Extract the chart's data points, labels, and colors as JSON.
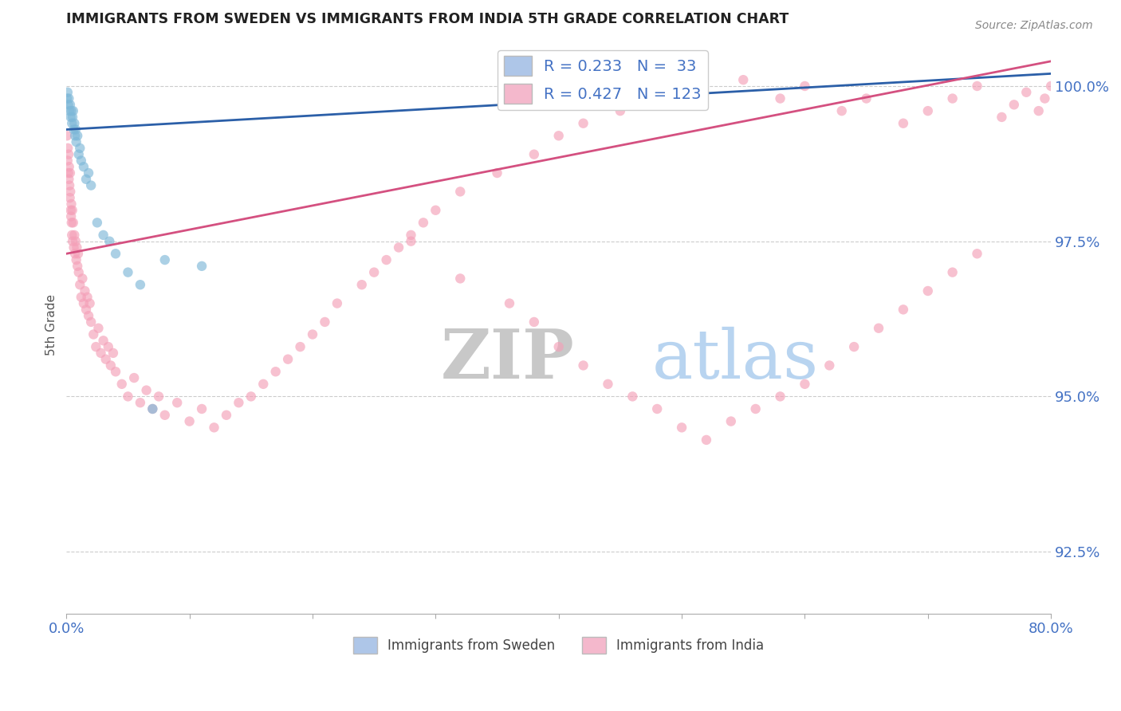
{
  "title": "IMMIGRANTS FROM SWEDEN VS IMMIGRANTS FROM INDIA 5TH GRADE CORRELATION CHART",
  "source": "Source: ZipAtlas.com",
  "ylabel": "5th Grade",
  "ylabel_right_ticks": [
    92.5,
    95.0,
    97.5,
    100.0
  ],
  "xlim": [
    0.0,
    80.0
  ],
  "ylim": [
    91.5,
    100.8
  ],
  "sweden_color": "#7eb8d8",
  "india_color": "#f4a0b8",
  "sweden_R": 0.233,
  "sweden_N": 33,
  "india_R": 0.427,
  "india_N": 123,
  "watermark_zip_color": "#c8c8c8",
  "watermark_atlas_color": "#b8d4f0",
  "background_color": "#ffffff",
  "grid_color": "#cccccc",
  "axis_label_color": "#4472c4",
  "legend_box_color_sweden": "#aec6e8",
  "legend_box_color_india": "#f4b8cc",
  "sweden_line_color": "#2b5fa8",
  "india_line_color": "#d45080",
  "sweden_scatter_x": [
    0.05,
    0.1,
    0.15,
    0.2,
    0.25,
    0.3,
    0.35,
    0.4,
    0.45,
    0.5,
    0.55,
    0.6,
    0.65,
    0.7,
    0.75,
    0.8,
    0.9,
    1.0,
    1.1,
    1.2,
    1.4,
    1.6,
    1.8,
    2.0,
    2.5,
    3.0,
    3.5,
    4.0,
    5.0,
    6.0,
    7.0,
    8.0,
    11.0
  ],
  "sweden_scatter_y": [
    99.8,
    99.9,
    99.7,
    99.8,
    99.6,
    99.7,
    99.5,
    99.6,
    99.4,
    99.5,
    99.6,
    99.3,
    99.4,
    99.2,
    99.3,
    99.1,
    99.2,
    98.9,
    99.0,
    98.8,
    98.7,
    98.5,
    98.6,
    98.4,
    97.8,
    97.6,
    97.5,
    97.3,
    97.0,
    96.8,
    94.8,
    97.2,
    97.1
  ],
  "india_scatter_x": [
    0.05,
    0.1,
    0.12,
    0.15,
    0.18,
    0.2,
    0.22,
    0.25,
    0.28,
    0.3,
    0.32,
    0.35,
    0.38,
    0.4,
    0.42,
    0.45,
    0.48,
    0.5,
    0.55,
    0.6,
    0.65,
    0.7,
    0.75,
    0.8,
    0.85,
    0.9,
    0.95,
    1.0,
    1.1,
    1.2,
    1.3,
    1.4,
    1.5,
    1.6,
    1.7,
    1.8,
    1.9,
    2.0,
    2.2,
    2.4,
    2.6,
    2.8,
    3.0,
    3.2,
    3.4,
    3.6,
    3.8,
    4.0,
    4.5,
    5.0,
    5.5,
    6.0,
    6.5,
    7.0,
    7.5,
    8.0,
    9.0,
    10.0,
    11.0,
    12.0,
    13.0,
    14.0,
    15.0,
    16.0,
    17.0,
    18.0,
    19.0,
    20.0,
    21.0,
    22.0,
    24.0,
    25.0,
    26.0,
    27.0,
    28.0,
    29.0,
    30.0,
    32.0,
    35.0,
    38.0,
    40.0,
    42.0,
    45.0,
    47.0,
    50.0,
    55.0,
    58.0,
    60.0,
    63.0,
    65.0,
    68.0,
    70.0,
    72.0,
    74.0,
    76.0,
    77.0,
    78.0,
    79.0,
    79.5,
    80.0,
    28.0,
    32.0,
    36.0,
    38.0,
    40.0,
    42.0,
    44.0,
    46.0,
    48.0,
    50.0,
    52.0,
    54.0,
    56.0,
    58.0,
    60.0,
    62.0,
    64.0,
    66.0,
    68.0,
    70.0,
    72.0,
    74.0
  ],
  "india_scatter_y": [
    99.2,
    98.8,
    99.0,
    98.6,
    98.9,
    98.5,
    98.7,
    98.4,
    98.2,
    98.6,
    98.3,
    98.0,
    97.9,
    98.1,
    97.8,
    97.6,
    98.0,
    97.5,
    97.8,
    97.4,
    97.6,
    97.3,
    97.5,
    97.2,
    97.4,
    97.1,
    97.3,
    97.0,
    96.8,
    96.6,
    96.9,
    96.5,
    96.7,
    96.4,
    96.6,
    96.3,
    96.5,
    96.2,
    96.0,
    95.8,
    96.1,
    95.7,
    95.9,
    95.6,
    95.8,
    95.5,
    95.7,
    95.4,
    95.2,
    95.0,
    95.3,
    94.9,
    95.1,
    94.8,
    95.0,
    94.7,
    94.9,
    94.6,
    94.8,
    94.5,
    94.7,
    94.9,
    95.0,
    95.2,
    95.4,
    95.6,
    95.8,
    96.0,
    96.2,
    96.5,
    96.8,
    97.0,
    97.2,
    97.4,
    97.6,
    97.8,
    98.0,
    98.3,
    98.6,
    98.9,
    99.2,
    99.4,
    99.6,
    99.8,
    100.0,
    100.1,
    99.8,
    100.0,
    99.6,
    99.8,
    99.4,
    99.6,
    99.8,
    100.0,
    99.5,
    99.7,
    99.9,
    99.6,
    99.8,
    100.0,
    97.5,
    96.9,
    96.5,
    96.2,
    95.8,
    95.5,
    95.2,
    95.0,
    94.8,
    94.5,
    94.3,
    94.6,
    94.8,
    95.0,
    95.2,
    95.5,
    95.8,
    96.1,
    96.4,
    96.7,
    97.0,
    97.3
  ]
}
